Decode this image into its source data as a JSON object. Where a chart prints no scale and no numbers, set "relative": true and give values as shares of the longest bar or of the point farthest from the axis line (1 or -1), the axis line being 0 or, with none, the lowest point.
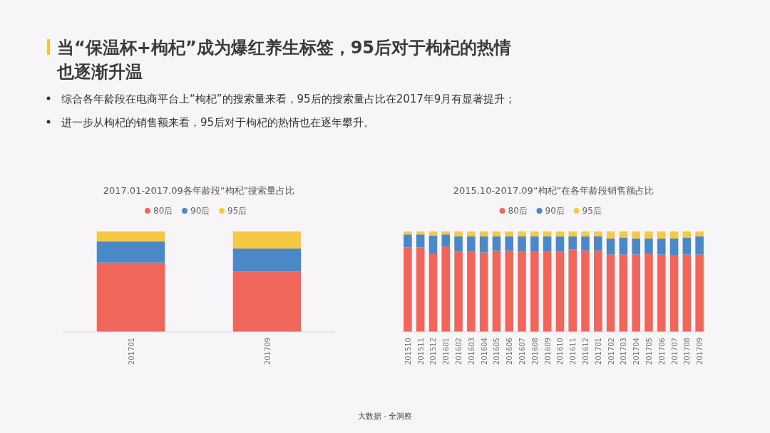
{
  "chart_data": [
    {
      "type": "other",
      "title": "当“保温杯+枸杞”成为爆红养生标签，95后对于枸杞的热情也逐渐升温",
      "annotations": [
        "综合各年龄段在电商平台上“枸杞”的搜索量来看，95后的搜索量占比在2017年9月有显著提升；",
        "进一步从枸杞的销售额来看，95后对于枸杞的热情也在逐年攀升。",
        "大数据 · 全洞察"
      ]
    },
    {
      "type": "bar",
      "title": "2017.01-2017.09各年龄段“枸杞”搜索量占比",
      "stacked": true,
      "relative": true,
      "legend": "top",
      "categories": [
        "201701",
        "201709"
      ],
      "series": [
        {
          "name": "80后",
          "color": "#f0665b",
          "values": [
            0.69,
            0.6
          ]
        },
        {
          "name": "90后",
          "color": "#4a88c7",
          "values": [
            0.21,
            0.23
          ]
        },
        {
          "name": "95后",
          "color": "#f6c945",
          "values": [
            0.1,
            0.17
          ]
        }
      ]
    },
    {
      "type": "bar",
      "title": "2015.10-2017.09“枸杞”在各年龄段销售额占比",
      "stacked": true,
      "relative": true,
      "legend": "top",
      "categories": [
        "201510",
        "201511",
        "201512",
        "201601",
        "201602",
        "201603",
        "201604",
        "201605",
        "201606",
        "201607",
        "201608",
        "201609",
        "201610",
        "201611",
        "201612",
        "201701",
        "201702",
        "201703",
        "201704",
        "201705",
        "201706",
        "201707",
        "201708",
        "201709"
      ],
      "series": [
        {
          "name": "80后",
          "color": "#f0665b",
          "values": [
            0.84,
            0.84,
            0.78,
            0.85,
            0.8,
            0.8,
            0.79,
            0.81,
            0.81,
            0.8,
            0.8,
            0.8,
            0.8,
            0.82,
            0.81,
            0.81,
            0.77,
            0.77,
            0.77,
            0.78,
            0.77,
            0.76,
            0.77,
            0.77
          ]
        },
        {
          "name": "90后",
          "color": "#4a88c7",
          "values": [
            0.13,
            0.13,
            0.18,
            0.12,
            0.15,
            0.15,
            0.16,
            0.14,
            0.14,
            0.15,
            0.15,
            0.15,
            0.15,
            0.13,
            0.14,
            0.14,
            0.16,
            0.17,
            0.16,
            0.15,
            0.16,
            0.17,
            0.17,
            0.18
          ]
        },
        {
          "name": "95后",
          "color": "#f6c945",
          "values": [
            0.03,
            0.03,
            0.04,
            0.03,
            0.05,
            0.05,
            0.05,
            0.05,
            0.05,
            0.05,
            0.05,
            0.05,
            0.05,
            0.05,
            0.05,
            0.05,
            0.07,
            0.06,
            0.07,
            0.07,
            0.07,
            0.07,
            0.06,
            0.05
          ]
        }
      ]
    }
  ]
}
